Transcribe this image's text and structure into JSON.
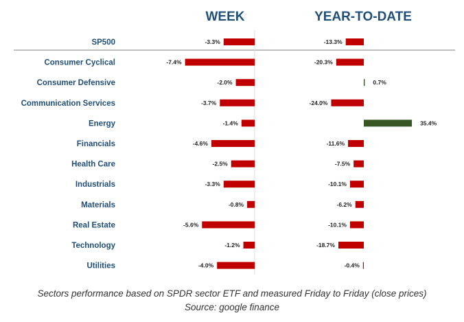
{
  "chart_data": {
    "type": "bar",
    "orientation": "horizontal",
    "panels": [
      {
        "name": "WEEK",
        "values": [
          -3.3,
          -7.4,
          -2.0,
          -3.7,
          -1.4,
          -4.6,
          -2.5,
          -3.3,
          -0.8,
          -5.6,
          -1.2,
          -4.0
        ],
        "labels": [
          "-3.3%",
          "-7.4%",
          "-2.0%",
          "-3.7%",
          "-1.4%",
          "-4.6%",
          "-2.5%",
          "-3.3%",
          "-0.8%",
          "-5.6%",
          "-1.2%",
          "-4.0%"
        ]
      },
      {
        "name": "YEAR-TO-DATE",
        "values": [
          -13.3,
          -20.3,
          0.7,
          -24.0,
          35.4,
          -11.6,
          -7.5,
          -10.1,
          -6.2,
          -10.1,
          -18.7,
          -0.4
        ],
        "labels": [
          "-13.3%",
          "-20.3%",
          "0.7%",
          "-24.0%",
          "35.4%",
          "-11.6%",
          "-7.5%",
          "-10.1%",
          "-6.2%",
          "-10.1%",
          "-18.7%",
          "-0.4%"
        ]
      }
    ],
    "categories": [
      "SP500",
      "Consumer Cyclical",
      "Consumer Defensive",
      "Communication Services",
      "Energy",
      "Financials",
      "Health Care",
      "Industrials",
      "Materials",
      "Real Estate",
      "Technology",
      "Utilities"
    ],
    "colors": {
      "negative": "#c00000",
      "positive": "#375623",
      "category_text": "#1f4e79",
      "header_text": "#1f4e79"
    },
    "legend": "none",
    "grid": false
  },
  "caption": {
    "line1": "Sectors performance based on SPDR sector ETF and measured Friday to Friday (close prices)",
    "line2": "Source: google finance"
  }
}
